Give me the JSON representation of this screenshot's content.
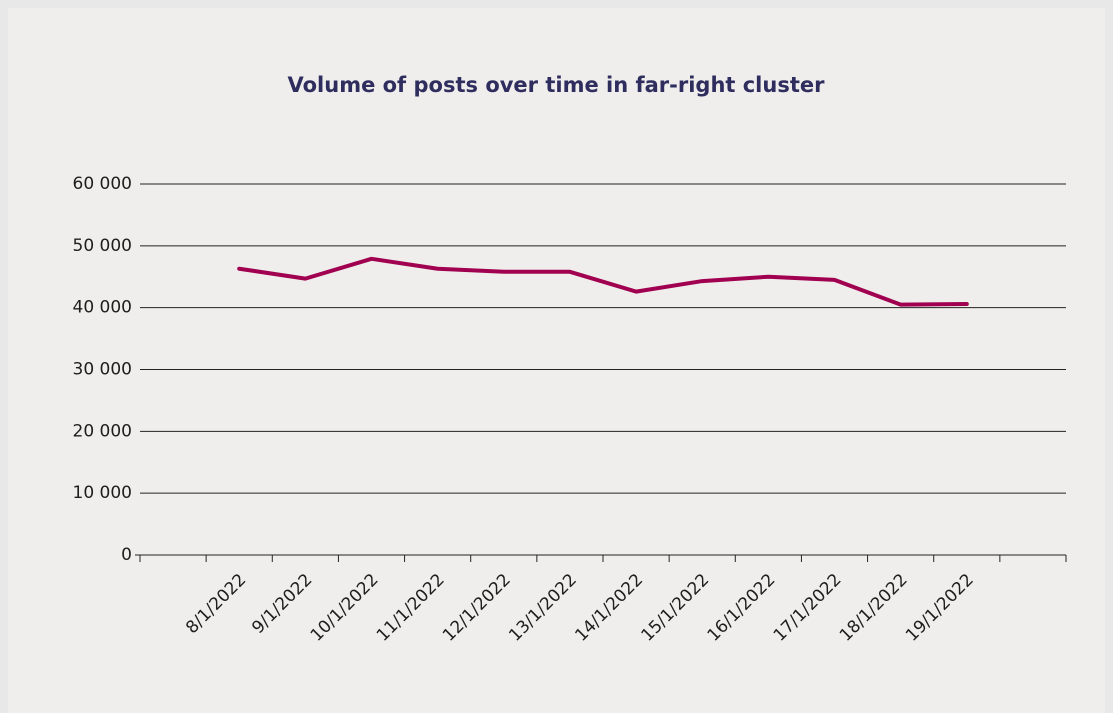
{
  "chart_data": {
    "type": "line",
    "title": "Volume of posts over time in far-right cluster",
    "categories": [
      null,
      "8/1/2022",
      "9/1/2022",
      "10/1/2022",
      "11/1/2022",
      "12/1/2022",
      "13/1/2022",
      "14/1/2022",
      "15/1/2022",
      "16/1/2022",
      "17/1/2022",
      "18/1/2022",
      "19/1/2022",
      null
    ],
    "series": [
      {
        "name": "Volume of posts",
        "color": "#a10050",
        "values": [
          null,
          46300,
          44700,
          47900,
          46300,
          45800,
          45800,
          42600,
          44300,
          45000,
          44500,
          40500,
          40600,
          null
        ]
      }
    ],
    "ylim": [
      0,
      60000
    ],
    "yticks": [
      0,
      {
        "value": 10000,
        "label": "10 000"
      },
      {
        "value": 20000,
        "label": "20 000"
      },
      {
        "value": 30000,
        "label": "30 000"
      },
      {
        "value": 40000,
        "label": "40 000"
      },
      {
        "value": 50000,
        "label": "50 000"
      },
      {
        "value": 60000,
        "label": "60 000"
      }
    ],
    "grid": true
  }
}
